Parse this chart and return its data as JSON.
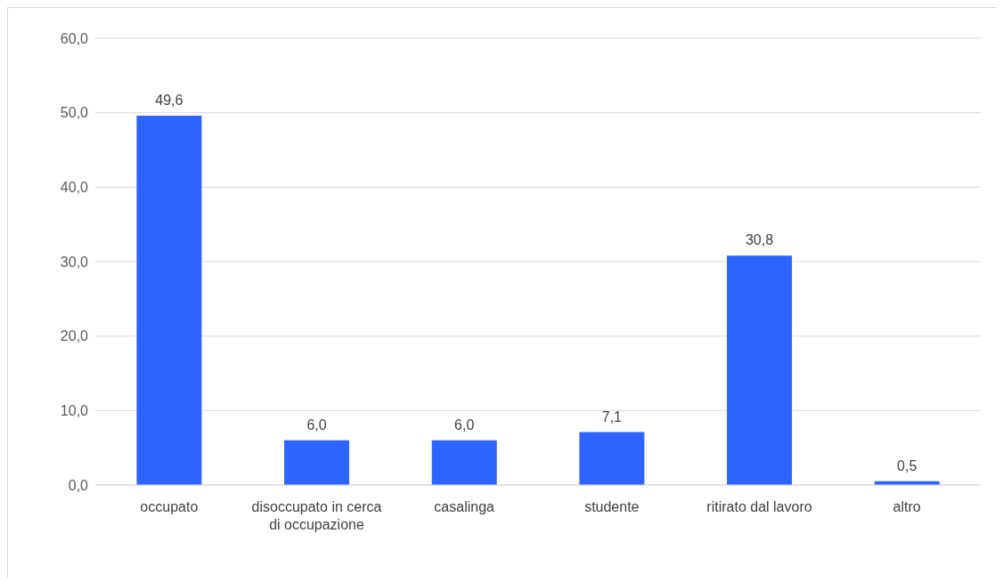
{
  "chart_data": {
    "type": "bar",
    "categories": [
      "occupato",
      "disoccupato in cerca di occupazione",
      "casalinga",
      "studente",
      "ritirato dal lavoro",
      "altro"
    ],
    "values": [
      49.6,
      6.0,
      6.0,
      7.1,
      30.8,
      0.5
    ],
    "value_labels": [
      "49,6",
      "6,0",
      "6,0",
      "7,1",
      "30,8",
      "0,5"
    ],
    "color": "#2e64fe",
    "ylim": [
      0,
      60
    ],
    "yticks": [
      {
        "value": 0,
        "label": "0,0"
      },
      {
        "value": 10,
        "label": "10,0"
      },
      {
        "value": 20,
        "label": "20,0"
      },
      {
        "value": 30,
        "label": "30,0"
      },
      {
        "value": 40,
        "label": "40,0"
      },
      {
        "value": 50,
        "label": "50,0"
      },
      {
        "value": 60,
        "label": "60,0"
      }
    ],
    "grid": "y"
  }
}
